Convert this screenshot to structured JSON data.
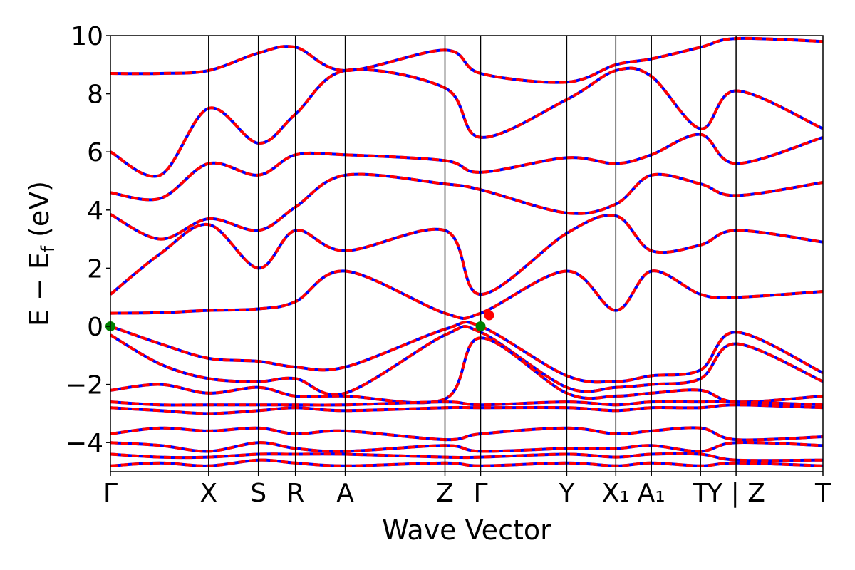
{
  "chart_data": {
    "type": "line",
    "title": "",
    "xlabel": "Wave Vector",
    "ylabel": "E − E_f (eV)",
    "ylabel_parts": {
      "main": "E − E",
      "sub": "f",
      "unit": " (eV)"
    },
    "ylim": [
      -5,
      10
    ],
    "yticks": [
      -4,
      -2,
      0,
      2,
      4,
      6,
      8,
      10
    ],
    "ytick_labels": [
      "−4",
      "−2",
      "0",
      "2",
      "4",
      "6",
      "8",
      "10"
    ],
    "grid": false,
    "legend": "none",
    "colors": {
      "band_solid": "#0000ff",
      "band_dashed": "#ff0000",
      "vbm_marker": "#008000",
      "cbm_marker": "#ff0000",
      "kpoint_line": "#000000"
    },
    "kpath": [
      {
        "label": "Γ",
        "x": 0.0
      },
      {
        "label": "X",
        "x": 0.1378
      },
      {
        "label": "S",
        "x": 0.2077
      },
      {
        "label": "R",
        "x": 0.2597
      },
      {
        "label": "A",
        "x": 0.3296
      },
      {
        "label": "Z",
        "x": 0.4695
      },
      {
        "label": "Γ",
        "x": 0.5195
      },
      {
        "label": "Y",
        "x": 0.6404
      },
      {
        "label": "X₁",
        "x": 0.7093
      },
      {
        "label": "A₁",
        "x": 0.7592
      },
      {
        "label": "T",
        "x": 0.8282
      },
      {
        "label": "Y | Z",
        "x": 0.8781
      },
      {
        "label": "T",
        "x": 1.0
      }
    ],
    "markers": [
      {
        "type": "VBM",
        "x": 0.0,
        "y": 0.0
      },
      {
        "type": "VBM",
        "x": 0.5195,
        "y": 0.0
      },
      {
        "type": "CBM",
        "x": 0.5315,
        "y": 0.38
      }
    ],
    "series": [
      {
        "x": [
          0,
          0.07,
          0.1378,
          0.2077,
          0.2597,
          0.3296,
          0.4695,
          0.5195,
          0.6404,
          0.7093,
          0.7592,
          0.8282,
          0.8781,
          1.0
        ],
        "y": [
          0,
          -0.6,
          -1.1,
          -1.2,
          -1.4,
          -1.4,
          -0.1,
          0,
          -1.7,
          -1.9,
          -1.7,
          -1.5,
          -0.2,
          -1.6
        ]
      },
      {
        "x": [
          0,
          0.07,
          0.1378,
          0.2077,
          0.2597,
          0.3296,
          0.4695,
          0.5195,
          0.6404,
          0.7093,
          0.7592,
          0.8282,
          0.8781,
          1.0
        ],
        "y": [
          -0.3,
          -1.3,
          -1.8,
          -1.9,
          -1.8,
          -2.3,
          -0.3,
          -0.2,
          -2.1,
          -2.1,
          -2.0,
          -1.8,
          -0.6,
          -1.9
        ]
      },
      {
        "x": [
          0,
          0.07,
          0.1378,
          0.2077,
          0.2597,
          0.3296,
          0.4695,
          0.5195,
          0.6404,
          0.7093,
          0.7592,
          0.8282,
          0.8781,
          1.0
        ],
        "y": [
          -2.2,
          -2.0,
          -2.3,
          -2.1,
          -2.4,
          -2.4,
          -2.5,
          -0.4,
          -2.3,
          -2.4,
          -2.3,
          -2.2,
          -2.6,
          -2.4
        ]
      },
      {
        "x": [
          0,
          0.07,
          0.1378,
          0.2077,
          0.2597,
          0.3296,
          0.4695,
          0.5195,
          0.6404,
          0.7093,
          0.7592,
          0.8282,
          0.8781,
          1.0
        ],
        "y": [
          -2.6,
          -2.7,
          -2.7,
          -2.7,
          -2.7,
          -2.7,
          -2.6,
          -2.7,
          -2.6,
          -2.7,
          -2.6,
          -2.6,
          -2.6,
          -2.7
        ]
      },
      {
        "x": [
          0,
          0.07,
          0.1378,
          0.2077,
          0.2597,
          0.3296,
          0.4695,
          0.5195,
          0.6404,
          0.7093,
          0.7592,
          0.8282,
          0.8781,
          1.0
        ],
        "y": [
          -2.8,
          -2.9,
          -3.0,
          -2.9,
          -2.8,
          -2.9,
          -2.8,
          -2.8,
          -2.8,
          -2.9,
          -2.8,
          -2.8,
          -2.7,
          -2.8
        ]
      },
      {
        "x": [
          0,
          0.07,
          0.1378,
          0.2077,
          0.2597,
          0.3296,
          0.4695,
          0.5195,
          0.6404,
          0.7093,
          0.7592,
          0.8282,
          0.8781,
          1.0
        ],
        "y": [
          -3.7,
          -3.5,
          -3.6,
          -3.5,
          -3.7,
          -3.6,
          -3.9,
          -3.7,
          -3.5,
          -3.7,
          -3.6,
          -3.5,
          -3.9,
          -3.8
        ]
      },
      {
        "x": [
          0,
          0.07,
          0.1378,
          0.2077,
          0.2597,
          0.3296,
          0.4695,
          0.5195,
          0.6404,
          0.7093,
          0.7592,
          0.8282,
          0.8781,
          1.0
        ],
        "y": [
          -4.0,
          -4.1,
          -4.3,
          -4.0,
          -4.2,
          -4.3,
          -4.1,
          -4.3,
          -4.2,
          -4.2,
          -4.1,
          -4.3,
          -4.0,
          -4.1
        ]
      },
      {
        "x": [
          0,
          0.07,
          0.1378,
          0.2077,
          0.2597,
          0.3296,
          0.4695,
          0.5195,
          0.6404,
          0.7093,
          0.7592,
          0.8282,
          0.8781,
          1.0
        ],
        "y": [
          -4.4,
          -4.5,
          -4.5,
          -4.4,
          -4.4,
          -4.4,
          -4.5,
          -4.5,
          -4.4,
          -4.5,
          -4.4,
          -4.4,
          -4.6,
          -4.6
        ]
      },
      {
        "x": [
          0,
          0.07,
          0.1378,
          0.2077,
          0.2597,
          0.3296,
          0.4695,
          0.5195,
          0.6404,
          0.7093,
          0.7592,
          0.8282,
          0.8781,
          1.0
        ],
        "y": [
          -4.8,
          -4.7,
          -4.8,
          -4.6,
          -4.7,
          -4.8,
          -4.7,
          -4.8,
          -4.7,
          -4.8,
          -4.7,
          -4.8,
          -4.7,
          -4.8
        ]
      },
      {
        "x": [
          0,
          0.07,
          0.1378,
          0.2077,
          0.2597,
          0.3296,
          0.4695,
          0.5195,
          0.6404,
          0.7093,
          0.7592,
          0.8282,
          0.8781,
          1.0
        ],
        "y": [
          0.45,
          0.47,
          0.55,
          0.6,
          0.85,
          1.9,
          0.45,
          0.45,
          1.9,
          0.55,
          1.9,
          1.1,
          1.0,
          1.2
        ]
      },
      {
        "x": [
          0,
          0.07,
          0.1378,
          0.2077,
          0.2597,
          0.3296,
          0.4695,
          0.5195,
          0.6404,
          0.7093,
          0.7592,
          0.8282,
          0.8781,
          1.0
        ],
        "y": [
          1.1,
          2.5,
          3.5,
          2.0,
          3.3,
          2.6,
          3.3,
          1.1,
          3.2,
          3.8,
          2.6,
          2.8,
          3.3,
          2.9
        ]
      },
      {
        "x": [
          0,
          0.07,
          0.1378,
          0.2077,
          0.2597,
          0.3296,
          0.4695,
          0.5195,
          0.6404,
          0.7093,
          0.7592,
          0.8282,
          0.8781,
          1.0
        ],
        "y": [
          3.85,
          3.0,
          3.7,
          3.3,
          4.1,
          5.2,
          4.9,
          4.7,
          3.9,
          4.2,
          5.2,
          4.9,
          4.5,
          4.95
        ]
      },
      {
        "x": [
          0,
          0.07,
          0.1378,
          0.2077,
          0.2597,
          0.3296,
          0.4695,
          0.5195,
          0.6404,
          0.7093,
          0.7592,
          0.8282,
          0.8781,
          1.0
        ],
        "y": [
          4.6,
          4.4,
          5.6,
          5.2,
          5.9,
          5.9,
          5.7,
          5.3,
          5.8,
          5.6,
          5.9,
          6.6,
          5.6,
          6.5
        ]
      },
      {
        "x": [
          0,
          0.07,
          0.1378,
          0.2077,
          0.2597,
          0.3296,
          0.4695,
          0.5195,
          0.6404,
          0.7093,
          0.7592,
          0.8282,
          0.8781,
          1.0
        ],
        "y": [
          6.0,
          5.2,
          7.5,
          6.3,
          7.3,
          8.8,
          8.2,
          6.5,
          7.8,
          8.8,
          8.6,
          6.8,
          8.1,
          6.8
        ]
      },
      {
        "x": [
          0,
          0.07,
          0.1378,
          0.2077,
          0.2597,
          0.3296,
          0.4695,
          0.5195,
          0.6404,
          0.7093,
          0.7592,
          0.8282,
          0.8781,
          1.0
        ],
        "y": [
          8.7,
          8.7,
          8.8,
          9.4,
          9.6,
          8.8,
          9.5,
          8.7,
          8.4,
          9.0,
          9.2,
          9.6,
          9.9,
          9.8
        ]
      }
    ]
  }
}
